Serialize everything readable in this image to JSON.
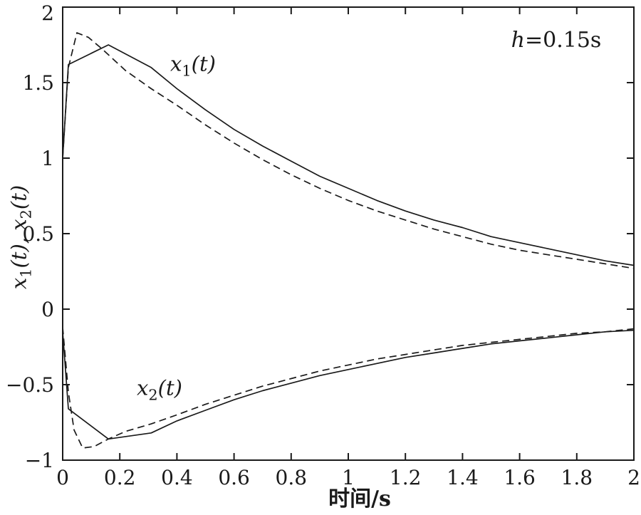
{
  "figure": {
    "background": "#ffffff",
    "ink_color": "#1a1a1a"
  },
  "chart_data": {
    "type": "line",
    "title": "",
    "xlabel": "时间/s",
    "ylabel": "x1(t), x2(t)",
    "xlim": [
      0,
      2
    ],
    "ylim": [
      -1,
      2
    ],
    "grid": false,
    "frame": "full-box",
    "legend_position": "none",
    "annotation": {
      "text": "h=0.15s",
      "var": "h",
      "rest": "=0.15s"
    },
    "labels": {
      "x1": {
        "var": "x",
        "sub": "1",
        "arg": "(t)"
      },
      "x2": {
        "var": "x",
        "sub": "2",
        "arg": "(t)"
      },
      "separator": ", "
    },
    "xticks": {
      "values": [
        0,
        0.2,
        0.4,
        0.6,
        0.8,
        1,
        1.2,
        1.4,
        1.6,
        1.8,
        2
      ],
      "labels": [
        "0",
        "0.2",
        "0.4",
        "0.6",
        "0.8",
        "1",
        "1.2",
        "1.4",
        "1.6",
        "1.8",
        "2"
      ]
    },
    "yticks": {
      "values": [
        2,
        1.5,
        1,
        0.5,
        0,
        -0.5,
        -1
      ],
      "labels": [
        "2",
        "1.5",
        "1",
        "0.5",
        "0",
        "−0.5",
        "−1"
      ]
    },
    "series": [
      {
        "id": "x1-solid",
        "name": "x1(t) solid",
        "line_style": "solid",
        "color": "#1a1a1a",
        "points": [
          [
            0,
            1.0
          ],
          [
            0.02,
            1.62
          ],
          [
            0.16,
            1.75
          ],
          [
            0.31,
            1.6
          ],
          [
            0.4,
            1.46
          ],
          [
            0.5,
            1.32
          ],
          [
            0.6,
            1.19
          ],
          [
            0.7,
            1.08
          ],
          [
            0.8,
            0.98
          ],
          [
            0.9,
            0.88
          ],
          [
            1.0,
            0.8
          ],
          [
            1.1,
            0.72
          ],
          [
            1.2,
            0.65
          ],
          [
            1.3,
            0.59
          ],
          [
            1.4,
            0.54
          ],
          [
            1.5,
            0.48
          ],
          [
            1.6,
            0.44
          ],
          [
            1.7,
            0.4
          ],
          [
            1.8,
            0.36
          ],
          [
            1.9,
            0.32
          ],
          [
            2.0,
            0.29
          ]
        ]
      },
      {
        "id": "x1-dashed",
        "name": "x1(t) dashed",
        "line_style": "dashed",
        "color": "#1a1a1a",
        "points": [
          [
            0,
            1.0
          ],
          [
            0.02,
            1.6
          ],
          [
            0.05,
            1.83
          ],
          [
            0.09,
            1.8
          ],
          [
            0.14,
            1.72
          ],
          [
            0.22,
            1.58
          ],
          [
            0.31,
            1.46
          ],
          [
            0.4,
            1.35
          ],
          [
            0.5,
            1.22
          ],
          [
            0.6,
            1.1
          ],
          [
            0.7,
            0.99
          ],
          [
            0.8,
            0.89
          ],
          [
            0.9,
            0.8
          ],
          [
            1.0,
            0.72
          ],
          [
            1.1,
            0.65
          ],
          [
            1.2,
            0.59
          ],
          [
            1.3,
            0.53
          ],
          [
            1.4,
            0.48
          ],
          [
            1.5,
            0.43
          ],
          [
            1.6,
            0.39
          ],
          [
            1.7,
            0.36
          ],
          [
            1.8,
            0.33
          ],
          [
            1.9,
            0.3
          ],
          [
            2.0,
            0.27
          ]
        ]
      },
      {
        "id": "x2-solid",
        "name": "x2(t) solid",
        "line_style": "solid",
        "color": "#1a1a1a",
        "points": [
          [
            0,
            -0.15
          ],
          [
            0.02,
            -0.66
          ],
          [
            0.16,
            -0.86
          ],
          [
            0.31,
            -0.82
          ],
          [
            0.4,
            -0.74
          ],
          [
            0.5,
            -0.67
          ],
          [
            0.6,
            -0.6
          ],
          [
            0.7,
            -0.54
          ],
          [
            0.8,
            -0.49
          ],
          [
            0.9,
            -0.44
          ],
          [
            1.0,
            -0.4
          ],
          [
            1.1,
            -0.36
          ],
          [
            1.2,
            -0.32
          ],
          [
            1.3,
            -0.29
          ],
          [
            1.4,
            -0.26
          ],
          [
            1.5,
            -0.23
          ],
          [
            1.6,
            -0.21
          ],
          [
            1.7,
            -0.19
          ],
          [
            1.8,
            -0.17
          ],
          [
            1.9,
            -0.15
          ],
          [
            2.0,
            -0.14
          ]
        ]
      },
      {
        "id": "x2-dashed",
        "name": "x2(t) dashed",
        "line_style": "dashed",
        "color": "#1a1a1a",
        "points": [
          [
            0,
            -0.12
          ],
          [
            0.02,
            -0.55
          ],
          [
            0.04,
            -0.8
          ],
          [
            0.07,
            -0.92
          ],
          [
            0.11,
            -0.91
          ],
          [
            0.16,
            -0.86
          ],
          [
            0.22,
            -0.81
          ],
          [
            0.31,
            -0.76
          ],
          [
            0.4,
            -0.7
          ],
          [
            0.5,
            -0.63
          ],
          [
            0.6,
            -0.57
          ],
          [
            0.7,
            -0.51
          ],
          [
            0.8,
            -0.46
          ],
          [
            0.9,
            -0.41
          ],
          [
            1.0,
            -0.37
          ],
          [
            1.1,
            -0.33
          ],
          [
            1.2,
            -0.3
          ],
          [
            1.3,
            -0.27
          ],
          [
            1.4,
            -0.24
          ],
          [
            1.5,
            -0.22
          ],
          [
            1.6,
            -0.2
          ],
          [
            1.7,
            -0.18
          ],
          [
            1.8,
            -0.16
          ],
          [
            1.9,
            -0.15
          ],
          [
            2.0,
            -0.13
          ]
        ]
      }
    ]
  }
}
